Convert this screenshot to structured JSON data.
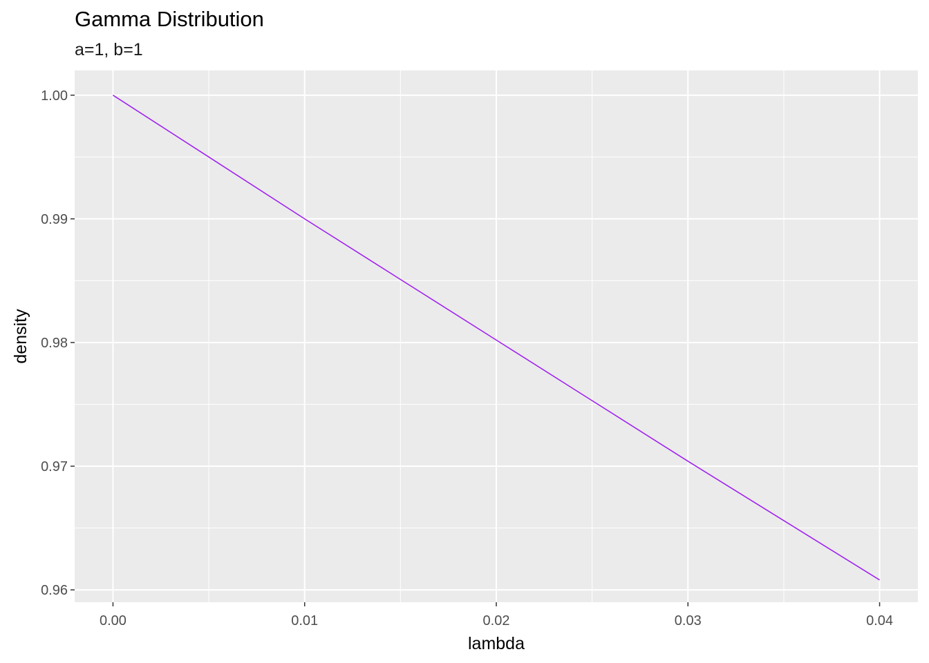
{
  "chart_data": {
    "type": "line",
    "title": "Gamma Distribution",
    "subtitle": "a=1, b=1",
    "xlabel": "lambda",
    "ylabel": "density",
    "xlim": [
      -0.002,
      0.042
    ],
    "ylim": [
      0.959,
      1.002
    ],
    "x_ticks": [
      0.0,
      0.01,
      0.02,
      0.03,
      0.04
    ],
    "x_tick_labels": [
      "0.00",
      "0.01",
      "0.02",
      "0.03",
      "0.04"
    ],
    "y_ticks": [
      0.96,
      0.97,
      0.98,
      0.99,
      1.0
    ],
    "y_tick_labels": [
      "0.96",
      "0.97",
      "0.98",
      "0.99",
      "1.00"
    ],
    "grid": true,
    "background": "#ebebeb",
    "series": [
      {
        "color": "#a020f0",
        "x": [
          0.0,
          0.005,
          0.01,
          0.015,
          0.02,
          0.025,
          0.03,
          0.035,
          0.04
        ],
        "y": [
          1.0,
          0.995,
          0.99,
          0.9851,
          0.9802,
          0.9753,
          0.9704,
          0.9656,
          0.9608
        ]
      }
    ]
  }
}
